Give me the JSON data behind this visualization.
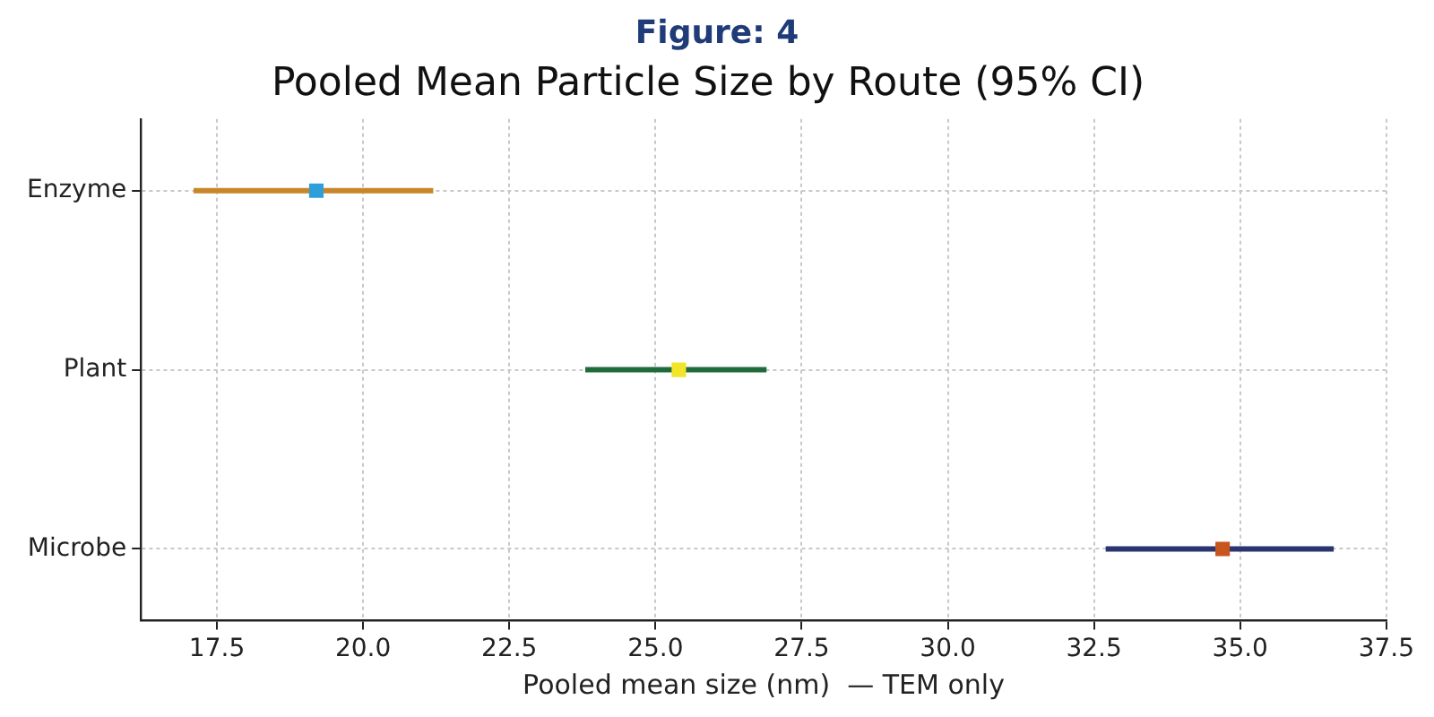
{
  "chart_data": {
    "type": "scatter",
    "orientation": "horizontal",
    "title": "Pooled Mean Particle Size by Route (95% CI)",
    "xlabel": "Pooled mean size (nm)  — TEM only",
    "annotations": [
      "Figure: 4"
    ],
    "categories": [
      "Enzyme",
      "Plant",
      "Microbe"
    ],
    "xlim": [
      16.2,
      37.5
    ],
    "xticks": [
      {
        "value": 17.5,
        "label": "17.5"
      },
      {
        "value": 20,
        "label": "20.0"
      },
      {
        "value": 22.5,
        "label": "22.5"
      },
      {
        "value": 25,
        "label": "25.0"
      },
      {
        "value": 27.5,
        "label": "27.5"
      },
      {
        "value": 30,
        "label": "30.0"
      },
      {
        "value": 32.5,
        "label": "32.5"
      },
      {
        "value": 35,
        "label": "35.0"
      },
      {
        "value": 37.5,
        "label": "37.5"
      }
    ],
    "grid": true,
    "marker": "square",
    "legend": false,
    "series": [
      {
        "color": "#c8862a",
        "colors": [
          "#2e9fd8",
          null,
          null
        ],
        "values": [
          19.2,
          null,
          null
        ],
        "errors": [
          [
            17.1,
            21.2
          ],
          null,
          null
        ]
      },
      {
        "color": "#1f6b3a",
        "colors": [
          null,
          "#f2e52a",
          null
        ],
        "values": [
          null,
          25.4,
          null
        ],
        "errors": [
          null,
          [
            23.8,
            26.9
          ],
          null
        ]
      },
      {
        "color": "#2a3470",
        "colors": [
          null,
          null,
          "#c8541e"
        ],
        "values": [
          null,
          null,
          34.7
        ],
        "errors": [
          null,
          null,
          [
            32.7,
            36.6
          ]
        ]
      }
    ]
  }
}
